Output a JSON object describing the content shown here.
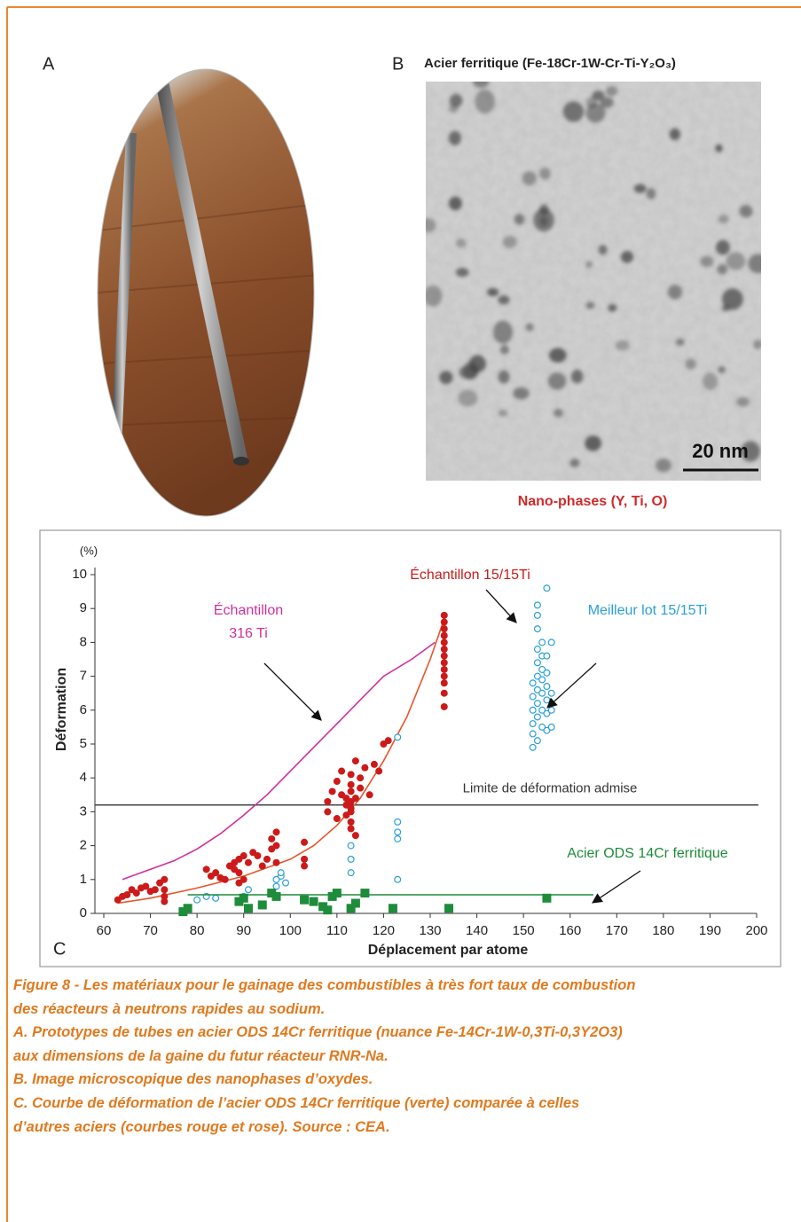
{
  "panel_a": {
    "label": "A"
  },
  "panel_b": {
    "label": "B",
    "title": "Acier ferritique (Fe-18Cr-1W-Cr-Ti-Y₂O₃)",
    "scale_bar": "20 nm",
    "caption": "Nano-phases (Y, Ti, O)"
  },
  "panel_c": {
    "label": "C"
  },
  "chart_data": {
    "type": "scatter",
    "x_label": "Déplacement par atome",
    "y_label": "Déformation",
    "y_unit": "(%)",
    "xlim": [
      60,
      200
    ],
    "ylim": [
      0,
      10
    ],
    "xticks": [
      60,
      70,
      80,
      90,
      100,
      110,
      120,
      130,
      140,
      150,
      160,
      170,
      180,
      190,
      200
    ],
    "yticks": [
      0,
      1,
      2,
      3,
      4,
      5,
      6,
      7,
      8,
      9,
      10
    ],
    "hlines": [
      {
        "value": 3.2,
        "label": "Limite de déformation admise",
        "color": "#444444"
      }
    ],
    "series": [
      {
        "name": "Échantillon\n316 Ti",
        "color": "#d0309a",
        "style": "line",
        "x": [
          64,
          70,
          75,
          80,
          85,
          90,
          95,
          100,
          105,
          110,
          115,
          120,
          126,
          131
        ],
        "values": [
          1.0,
          1.3,
          1.55,
          1.9,
          2.35,
          2.9,
          3.5,
          4.2,
          4.9,
          5.6,
          6.3,
          7.0,
          7.5,
          8.0
        ]
      },
      {
        "color": "#e8542a",
        "style": "line",
        "x": [
          63,
          70,
          80,
          90,
          100,
          105,
          110,
          115,
          120,
          125,
          130,
          133
        ],
        "values": [
          0.3,
          0.45,
          0.75,
          1.1,
          1.6,
          2.0,
          2.6,
          3.4,
          4.5,
          5.8,
          7.5,
          8.7
        ]
      },
      {
        "name": "Échantillon 15/15Ti",
        "color": "#cc1a1a",
        "style": "markers",
        "marker": "circle",
        "x": [
          63,
          64,
          65,
          66,
          67,
          68,
          69,
          70,
          71,
          72,
          73,
          73,
          73,
          73,
          82,
          83,
          84,
          85,
          86,
          87,
          88,
          88,
          89,
          89,
          89,
          90,
          90,
          91,
          92,
          93,
          94,
          95,
          96,
          96,
          97,
          97,
          97,
          103,
          103,
          103,
          108,
          108,
          109,
          110,
          110,
          111,
          111,
          112,
          112,
          112,
          113,
          113,
          113,
          113,
          113,
          113,
          113,
          113,
          114,
          114,
          114,
          115,
          115,
          116,
          117,
          118,
          119,
          120,
          121,
          133,
          133,
          133,
          133,
          133,
          133,
          133,
          133,
          133,
          133,
          133,
          133,
          133
        ],
        "values": [
          0.4,
          0.5,
          0.55,
          0.7,
          0.6,
          0.75,
          0.8,
          0.65,
          0.7,
          0.9,
          1.0,
          0.5,
          0.35,
          0.7,
          1.3,
          1.1,
          1.2,
          1.05,
          1.0,
          1.4,
          1.5,
          1.3,
          1.6,
          0.9,
          1.2,
          1.7,
          1.0,
          1.5,
          1.8,
          1.7,
          1.4,
          1.6,
          1.9,
          2.2,
          2.4,
          2.0,
          1.5,
          2.1,
          1.6,
          1.4,
          3.0,
          3.3,
          3.6,
          2.8,
          3.9,
          4.2,
          3.5,
          2.9,
          3.2,
          3.4,
          2.5,
          2.7,
          3.0,
          3.1,
          3.3,
          3.6,
          3.8,
          4.1,
          2.3,
          3.4,
          4.5,
          3.7,
          4.0,
          4.3,
          3.5,
          4.4,
          4.2,
          5.0,
          5.1,
          6.1,
          6.5,
          6.8,
          7.0,
          7.2,
          7.4,
          7.6,
          7.8,
          8.0,
          8.2,
          8.4,
          8.6,
          8.8
        ]
      },
      {
        "name": "Meilleur lot 15/15Ti",
        "color": "#2aa0d8",
        "style": "markers",
        "marker": "open-circle",
        "x": [
          80,
          82,
          84,
          90,
          91,
          97,
          97,
          98,
          98,
          99,
          113,
          113,
          113,
          123,
          123,
          123,
          123,
          123,
          152,
          152,
          152,
          152,
          152,
          152,
          153,
          153,
          153,
          153,
          153,
          153,
          153,
          153,
          153,
          153,
          154,
          154,
          154,
          154,
          154,
          154,
          154,
          155,
          155,
          155,
          155,
          155,
          155,
          155,
          156,
          156,
          156,
          156
        ],
        "values": [
          0.4,
          0.5,
          0.45,
          0.5,
          0.7,
          0.8,
          1.0,
          1.1,
          1.2,
          0.9,
          1.2,
          1.6,
          2.0,
          1.0,
          2.2,
          2.4,
          2.7,
          5.2,
          4.9,
          5.3,
          5.6,
          6.0,
          6.4,
          6.8,
          5.1,
          5.8,
          6.2,
          6.6,
          7.0,
          7.4,
          7.8,
          8.4,
          8.8,
          9.1,
          5.5,
          6.0,
          6.5,
          6.9,
          7.2,
          7.6,
          8.0,
          5.4,
          5.9,
          6.3,
          6.7,
          7.1,
          7.6,
          9.6,
          6.0,
          6.5,
          5.5,
          8.0
        ]
      },
      {
        "name": "Acier ODS 14Cr ferritique",
        "color": "#1e8c3a",
        "style": "markers",
        "marker": "square",
        "x": [
          77,
          78,
          89,
          90,
          91,
          94,
          96,
          97,
          103,
          105,
          107,
          108,
          109,
          110,
          113,
          114,
          116,
          122,
          134,
          155
        ],
        "values": [
          0.05,
          0.15,
          0.35,
          0.45,
          0.15,
          0.25,
          0.6,
          0.5,
          0.4,
          0.35,
          0.2,
          0.1,
          0.5,
          0.6,
          0.15,
          0.3,
          0.6,
          0.15,
          0.15,
          0.45
        ]
      },
      {
        "color": "#1e8c3a",
        "style": "line",
        "x": [
          78,
          165
        ],
        "values": [
          0.55,
          0.55
        ]
      }
    ]
  },
  "caption": [
    "Figure 8 - Les matériaux pour le gainage des combustibles à très fort taux de combustion",
    "des réacteurs à neutrons rapides au sodium.",
    "A. Prototypes de tubes en acier ODS 14Cr ferritique (nuance Fe-14Cr-1W-0,3Ti-0,3Y2O3)",
    "aux dimensions de la gaine du futur réacteur RNR-Na.",
    "B. Image microscopique des nanophases d’oxydes.",
    "C. Courbe de déformation de l’acier ODS 14Cr ferritique (verte) comparée à celles",
    "d’autres aciers (courbes rouge et rose). Source : CEA."
  ]
}
